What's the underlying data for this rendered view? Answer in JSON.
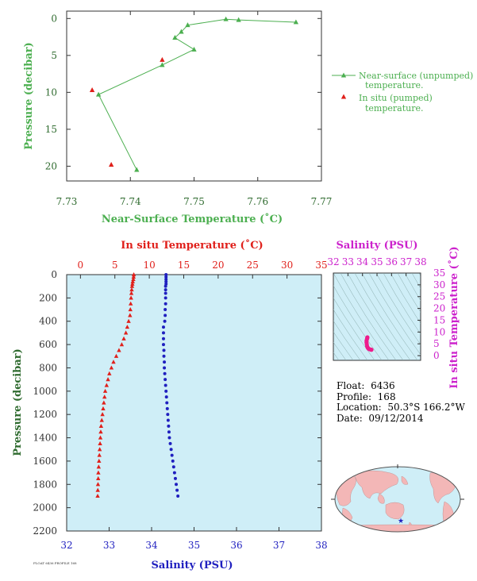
{
  "colors": {
    "green": "#4caf50",
    "red": "#e0201b",
    "blue": "#1f1fbf",
    "magenta": "#cc22cc",
    "panel_bg": "#cfeef7",
    "land": "#f3b7b7",
    "ocean": "#cfeef7",
    "axis_green": "#2f6b2f",
    "axis_dark": "#333333"
  },
  "footer_text": "FLOAT 6436 PROFILE 168",
  "info": {
    "float_label": "Float:",
    "float_value": "6436",
    "profile_label": "Profile:",
    "profile_value": "168",
    "location_label": "Location:",
    "location_value": "50.3°S  166.2°W",
    "date_label": "Date:",
    "date_value": "09/12/2014"
  },
  "chart_data": [
    {
      "type": "scatter",
      "id": "top-near-surface",
      "xlabel": "Near-Surface Temperature (˚C)",
      "ylabel": "Pressure (decibar)",
      "xlim": [
        7.73,
        7.77
      ],
      "ylim": [
        22,
        -1
      ],
      "xticks": [
        7.73,
        7.74,
        7.75,
        7.76,
        7.77
      ],
      "xtick_labels": [
        "7.73",
        "7.74",
        "7.75",
        "7.76",
        "7.77"
      ],
      "yticks": [
        0,
        5,
        10,
        15,
        20
      ],
      "ytick_labels": [
        "0",
        "5",
        "10",
        "15",
        "20"
      ],
      "series": [
        {
          "name": "Near-surface (unpumped) temperature.",
          "name_lines": [
            "Near-surface (unpumped)",
            "temperature."
          ],
          "style": "line+triangle",
          "points": [
            [
              7.766,
              0.5
            ],
            [
              7.757,
              0.2
            ],
            [
              7.755,
              0.1
            ],
            [
              7.749,
              0.9
            ],
            [
              7.748,
              1.8
            ],
            [
              7.747,
              2.6
            ],
            [
              7.75,
              4.2
            ],
            [
              7.745,
              6.3
            ],
            [
              7.735,
              10.3
            ],
            [
              7.741,
              20.5
            ]
          ]
        },
        {
          "name": "In situ (pumped) temperature.",
          "name_lines": [
            "In situ (pumped)",
            "temperature."
          ],
          "style": "triangle",
          "points": [
            [
              7.745,
              5.6
            ],
            [
              7.734,
              9.7
            ],
            [
              7.737,
              19.8
            ]
          ]
        }
      ]
    },
    {
      "type": "scatter",
      "id": "bottom-profile",
      "top_xlabel": "In situ Temperature (˚C)",
      "bottom_xlabel": "Salinity (PSU)",
      "ylabel": "Pressure (decibar)",
      "top_xlim": [
        -2,
        35
      ],
      "top_xticks": [
        0,
        5,
        10,
        15,
        20,
        25,
        30,
        35
      ],
      "top_xtick_labels": [
        "0",
        "5",
        "10",
        "15",
        "20",
        "25",
        "30",
        "35"
      ],
      "bottom_xlim": [
        32,
        38
      ],
      "bottom_xticks": [
        32,
        33,
        34,
        35,
        36,
        37,
        38
      ],
      "bottom_xtick_labels": [
        "32",
        "33",
        "34",
        "35",
        "36",
        "37",
        "38"
      ],
      "ylim": [
        2200,
        0
      ],
      "yticks": [
        0,
        200,
        400,
        600,
        800,
        1000,
        1200,
        1400,
        1600,
        1800,
        2000,
        2200
      ],
      "ytick_labels": [
        "0",
        "200",
        "400",
        "600",
        "800",
        "1000",
        "1200",
        "1400",
        "1600",
        "1800",
        "2000",
        "2200"
      ],
      "temperature": {
        "pressure": [
          0,
          20,
          40,
          60,
          80,
          100,
          130,
          160,
          200,
          250,
          300,
          350,
          400,
          450,
          500,
          550,
          600,
          650,
          700,
          750,
          800,
          850,
          900,
          950,
          1000,
          1050,
          1100,
          1150,
          1200,
          1250,
          1300,
          1350,
          1400,
          1450,
          1500,
          1550,
          1600,
          1650,
          1700,
          1750,
          1800,
          1850,
          1900
        ],
        "values": [
          7.75,
          7.72,
          7.68,
          7.6,
          7.55,
          7.5,
          7.45,
          7.4,
          7.35,
          7.3,
          7.25,
          7.2,
          7.0,
          6.8,
          6.6,
          6.3,
          6.0,
          5.6,
          5.2,
          4.8,
          4.5,
          4.2,
          4.0,
          3.8,
          3.6,
          3.5,
          3.4,
          3.3,
          3.2,
          3.1,
          3.0,
          2.95,
          2.9,
          2.85,
          2.8,
          2.75,
          2.7,
          2.65,
          2.6,
          2.58,
          2.55,
          2.52,
          2.5
        ]
      },
      "salinity": {
        "pressure": [
          0,
          20,
          40,
          60,
          80,
          100,
          130,
          160,
          200,
          250,
          300,
          350,
          400,
          450,
          500,
          550,
          600,
          650,
          700,
          750,
          800,
          850,
          900,
          950,
          1000,
          1050,
          1100,
          1150,
          1200,
          1250,
          1300,
          1350,
          1400,
          1450,
          1500,
          1550,
          1600,
          1650,
          1700,
          1750,
          1800,
          1850,
          1900
        ],
        "values": [
          34.34,
          34.34,
          34.34,
          34.34,
          34.34,
          34.33,
          34.33,
          34.33,
          34.33,
          34.33,
          34.32,
          34.32,
          34.31,
          34.28,
          34.28,
          34.28,
          34.28,
          34.29,
          34.29,
          34.3,
          34.3,
          34.31,
          34.32,
          34.33,
          34.34,
          34.35,
          34.36,
          34.37,
          34.38,
          34.39,
          34.4,
          34.41,
          34.42,
          34.44,
          34.46,
          34.48,
          34.5,
          34.52,
          34.54,
          34.56,
          34.58,
          34.6,
          34.62
        ]
      }
    },
    {
      "type": "scatter",
      "id": "ts-diagram",
      "xlabel": "Salinity (PSU)",
      "ylabel": "In situ Temperature (˚C)",
      "xlim": [
        32,
        38
      ],
      "ylim": [
        -2,
        35
      ],
      "xticks": [
        32,
        33,
        34,
        35,
        36,
        37,
        38
      ],
      "xtick_labels": [
        "32",
        "33",
        "34",
        "35",
        "36",
        "37",
        "38"
      ],
      "yticks": [
        0,
        5,
        10,
        15,
        20,
        25,
        30,
        35
      ],
      "ytick_labels": [
        "0",
        "5",
        "10",
        "15",
        "20",
        "25",
        "30",
        "35"
      ],
      "points": [
        [
          34.34,
          7.75
        ],
        [
          34.33,
          7.4
        ],
        [
          34.31,
          7.0
        ],
        [
          34.28,
          6.3
        ],
        [
          34.28,
          5.6
        ],
        [
          34.3,
          4.8
        ],
        [
          34.32,
          4.0
        ],
        [
          34.35,
          3.5
        ],
        [
          34.38,
          3.2
        ],
        [
          34.42,
          2.9
        ],
        [
          34.48,
          2.75
        ],
        [
          34.54,
          2.6
        ],
        [
          34.6,
          2.52
        ],
        [
          34.62,
          2.5
        ]
      ]
    }
  ]
}
